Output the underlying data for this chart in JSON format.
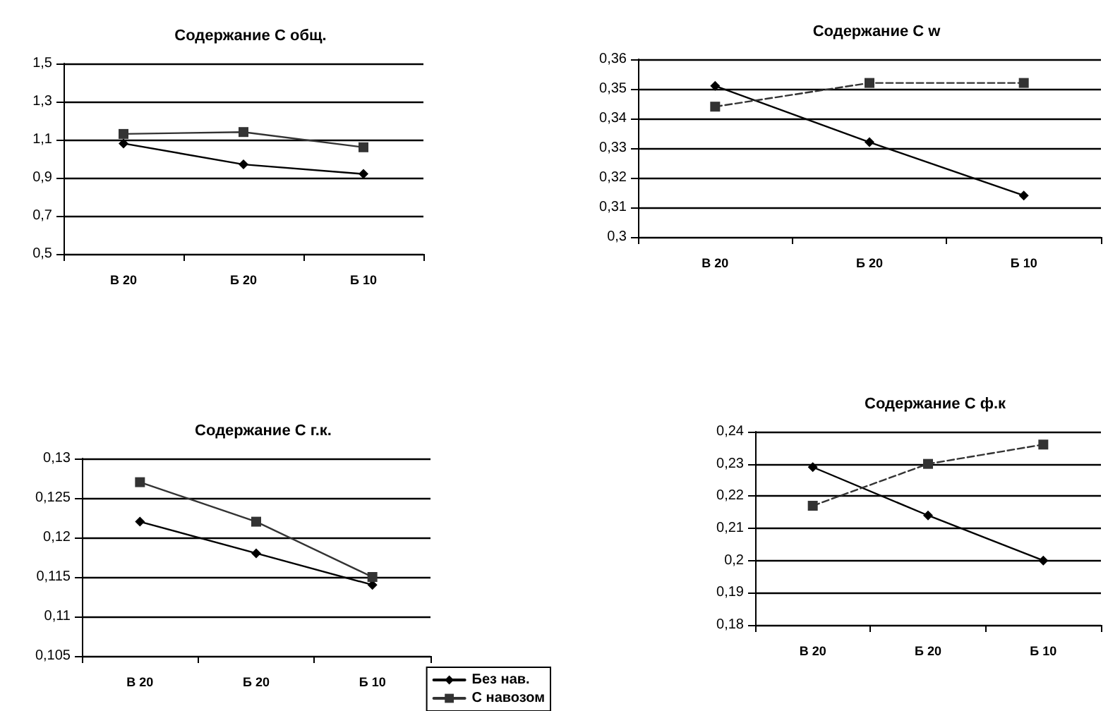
{
  "chart_data": [
    {
      "type": "line",
      "title": "Содержание С общ.",
      "categories": [
        "В 20",
        "Б 20",
        "Б 10"
      ],
      "ylim": [
        0.5,
        1.5
      ],
      "yticks": [
        {
          "value": 0.5,
          "label": "0,5"
        },
        {
          "value": 0.7,
          "label": "0,7"
        },
        {
          "value": 0.9,
          "label": "0,9"
        },
        {
          "value": 1.1,
          "label": "1,1"
        },
        {
          "value": 1.3,
          "label": "1,3"
        },
        {
          "value": 1.5,
          "label": "1,5"
        }
      ],
      "grid": "y",
      "legend": false,
      "series": [
        {
          "color": "#000000",
          "marker": "diamond",
          "values": [
            1.08,
            0.97,
            0.92
          ]
        },
        {
          "color": "#333333",
          "marker": "square",
          "values": [
            1.13,
            1.14,
            1.06
          ]
        }
      ]
    },
    {
      "type": "line",
      "title": "Содержание С w",
      "categories": [
        "В 20",
        "Б 20",
        "Б 10"
      ],
      "ylim": [
        0.3,
        0.36
      ],
      "yticks": [
        {
          "value": 0.3,
          "label": "0,3"
        },
        {
          "value": 0.31,
          "label": "0,31"
        },
        {
          "value": 0.32,
          "label": "0,32"
        },
        {
          "value": 0.33,
          "label": "0,33"
        },
        {
          "value": 0.34,
          "label": "0,34"
        },
        {
          "value": 0.35,
          "label": "0,35"
        },
        {
          "value": 0.36,
          "label": "0,36"
        }
      ],
      "grid": "y",
      "legend": false,
      "series": [
        {
          "color": "#000000",
          "marker": "diamond",
          "values": [
            0.351,
            0.332,
            0.314
          ]
        },
        {
          "color": "#333333",
          "marker": "square",
          "line_style": "dashed",
          "values": [
            0.344,
            0.352,
            0.352
          ]
        }
      ]
    },
    {
      "type": "line",
      "title": "Содержание С г.к.",
      "categories": [
        "В 20",
        "Б 20",
        "Б 10"
      ],
      "ylim": [
        0.105,
        0.13
      ],
      "yticks": [
        {
          "value": 0.105,
          "label": "0,105"
        },
        {
          "value": 0.11,
          "label": "0,11"
        },
        {
          "value": 0.115,
          "label": "0,115"
        },
        {
          "value": 0.12,
          "label": "0,12"
        },
        {
          "value": 0.125,
          "label": "0,125"
        },
        {
          "value": 0.13,
          "label": "0,13"
        }
      ],
      "grid": "y",
      "legend": "bottom right",
      "series": [
        {
          "name": "Без нав.",
          "color": "#000000",
          "marker": "diamond",
          "values": [
            0.122,
            0.118,
            0.114
          ]
        },
        {
          "name": "С навозом",
          "color": "#333333",
          "marker": "square",
          "values": [
            0.127,
            0.122,
            0.115
          ]
        }
      ]
    },
    {
      "type": "line",
      "title": "Содержание С ф.к",
      "categories": [
        "В 20",
        "Б 20",
        "Б 10"
      ],
      "ylim": [
        0.18,
        0.24
      ],
      "yticks": [
        {
          "value": 0.18,
          "label": "0,18"
        },
        {
          "value": 0.19,
          "label": "0,19"
        },
        {
          "value": 0.2,
          "label": "0,2"
        },
        {
          "value": 0.21,
          "label": "0,21"
        },
        {
          "value": 0.22,
          "label": "0,22"
        },
        {
          "value": 0.23,
          "label": "0,23"
        },
        {
          "value": 0.24,
          "label": "0,24"
        }
      ],
      "grid": "y",
      "legend": false,
      "series": [
        {
          "color": "#000000",
          "marker": "diamond",
          "values": [
            0.229,
            0.214,
            0.2
          ]
        },
        {
          "color": "#333333",
          "marker": "square",
          "line_style": "dashed",
          "values": [
            0.217,
            0.23,
            0.236
          ]
        }
      ]
    }
  ]
}
